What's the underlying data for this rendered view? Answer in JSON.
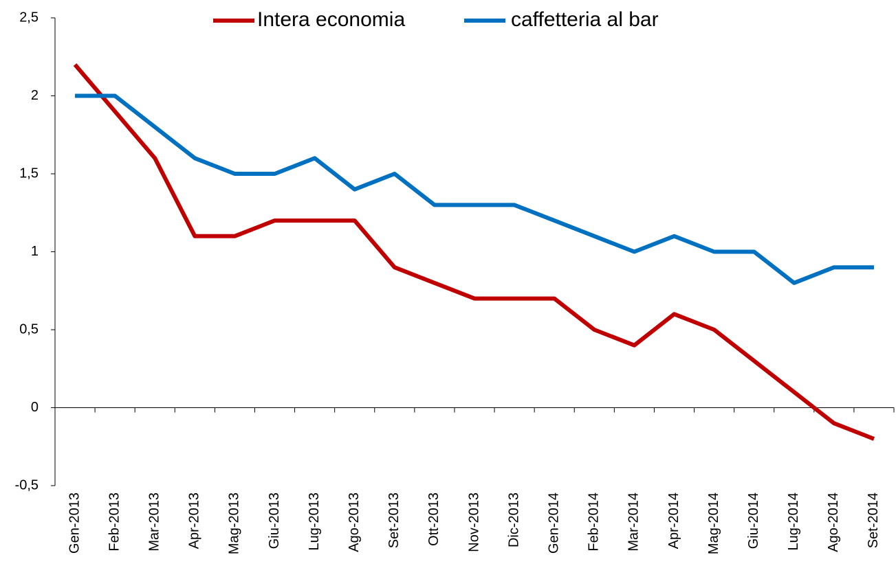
{
  "chart_data": {
    "type": "line",
    "categories": [
      "Gen-2013",
      "Feb-2013",
      "Mar-2013",
      "Apr-2013",
      "Mag-2013",
      "Giu-2013",
      "Lug-2013",
      "Ago-2013",
      "Set-2013",
      "Ott-2013",
      "Nov-2013",
      "Dic-2013",
      "Gen-2014",
      "Feb-2014",
      "Mar-2014",
      "Apr-2014",
      "Mag-2014",
      "Giu-2014",
      "Lug-2014",
      "Ago-2014",
      "Set-2014"
    ],
    "series": [
      {
        "name": "Intera economia",
        "color": "#c00000",
        "values": [
          2.2,
          1.9,
          1.6,
          1.1,
          1.1,
          1.2,
          1.2,
          1.2,
          0.9,
          0.8,
          0.7,
          0.7,
          0.7,
          0.5,
          0.4,
          0.6,
          0.5,
          0.3,
          0.1,
          -0.1,
          -0.2
        ]
      },
      {
        "name": "caffetteria al bar",
        "color": "#0070c0",
        "values": [
          2.0,
          2.0,
          1.8,
          1.6,
          1.5,
          1.5,
          1.6,
          1.4,
          1.5,
          1.3,
          1.3,
          1.3,
          1.2,
          1.1,
          1.0,
          1.1,
          1.0,
          1.0,
          0.8,
          0.9,
          0.9
        ]
      }
    ],
    "ylim": [
      -0.5,
      2.5
    ],
    "yticks": [
      {
        "value": -0.5,
        "label": "-0,5"
      },
      0,
      {
        "value": 0.5,
        "label": "0,5"
      },
      1,
      {
        "value": 1.5,
        "label": "1,5"
      },
      2,
      {
        "value": 2.5,
        "label": "2,5"
      }
    ],
    "legend": "top"
  }
}
